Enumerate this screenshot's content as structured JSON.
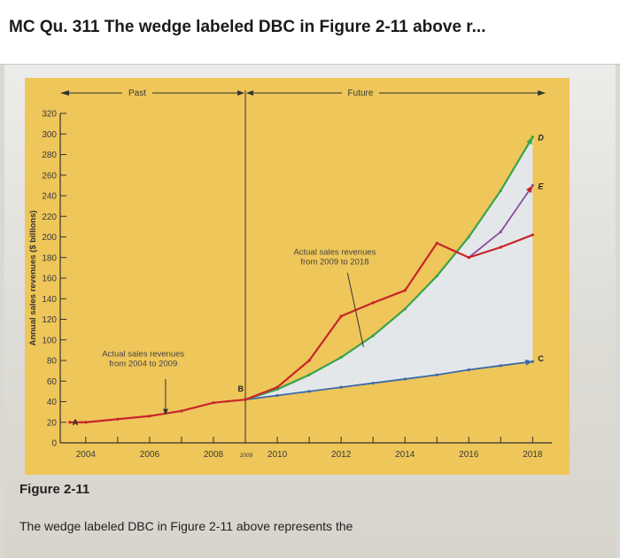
{
  "header": {
    "title": "MC Qu. 311 The wedge labeled DBC in Figure 2-11 above r..."
  },
  "figure": {
    "caption": "Figure 2-11",
    "question": "The wedge labeled DBC in Figure 2-11 above represents the"
  },
  "chart_data": {
    "type": "line",
    "ylabel": "Annual sales revenues ($ billions)",
    "xlabel": "",
    "ylim": [
      0,
      320
    ],
    "xlim": [
      2003.2,
      2018.6
    ],
    "yticks": [
      "0",
      "20",
      "40",
      "60",
      "80",
      "100",
      "120",
      "140",
      "160",
      "180",
      "200",
      "220",
      "240",
      "260",
      "280",
      "300",
      "320"
    ],
    "xticks": [
      {
        "value": 2004,
        "label": "2004"
      },
      {
        "value": 2006,
        "label": "2006"
      },
      {
        "value": 2008,
        "label": "2008"
      },
      {
        "value": 2009,
        "label": "2009"
      },
      {
        "value": 2010,
        "label": "2010"
      },
      {
        "value": 2012,
        "label": "2012"
      },
      {
        "value": 2014,
        "label": "2014"
      },
      {
        "value": 2016,
        "label": "2016"
      },
      {
        "value": 2018,
        "label": "2018"
      }
    ],
    "period_labels": {
      "past": "Past",
      "future": "Future"
    },
    "annotations": {
      "actual_2004_2009": "Actual sales revenues\nfrom 2004 to 2009",
      "actual_2009_2018": "Actual sales revenues\nfrom 2009 to 2018"
    },
    "point_labels": {
      "A": "A",
      "B": "B",
      "C": "C",
      "D": "D",
      "E": "E"
    },
    "colors": {
      "background": "#eec659",
      "wedge_fill": "#e4e7ea",
      "actual": "#c8242b",
      "lower_trend": "#3c6aa8",
      "upper_trend": "#3aa34a",
      "e_trend": "#8a4f9e",
      "axis": "#333333"
    },
    "series": [
      {
        "key": "actual_past",
        "values": [
          [
            2003.5,
            20
          ],
          [
            2004,
            20
          ],
          [
            2005,
            23
          ],
          [
            2006,
            26
          ],
          [
            2007,
            31
          ],
          [
            2008,
            39
          ],
          [
            2009,
            42
          ]
        ]
      },
      {
        "key": "actual_future",
        "values": [
          [
            2009,
            42
          ],
          [
            2010,
            54
          ],
          [
            2011,
            80
          ],
          [
            2012,
            123
          ],
          [
            2013,
            136
          ],
          [
            2014,
            148
          ],
          [
            2015,
            194
          ],
          [
            2016,
            180
          ],
          [
            2017,
            190
          ],
          [
            2018,
            202
          ]
        ]
      },
      {
        "key": "trend_C",
        "values": [
          [
            2009,
            42
          ],
          [
            2010,
            46
          ],
          [
            2011,
            50
          ],
          [
            2012,
            54
          ],
          [
            2013,
            58
          ],
          [
            2014,
            62
          ],
          [
            2015,
            66
          ],
          [
            2016,
            71
          ],
          [
            2017,
            75
          ],
          [
            2018,
            79
          ]
        ]
      },
      {
        "key": "trend_D",
        "values": [
          [
            2009,
            42
          ],
          [
            2010,
            52
          ],
          [
            2011,
            66
          ],
          [
            2012,
            83
          ],
          [
            2013,
            104
          ],
          [
            2014,
            130
          ],
          [
            2015,
            162
          ],
          [
            2016,
            200
          ],
          [
            2017,
            245
          ],
          [
            2018,
            297
          ]
        ]
      },
      {
        "key": "trend_E",
        "values": [
          [
            2016,
            180
          ],
          [
            2017,
            205
          ],
          [
            2018,
            250
          ]
        ]
      }
    ]
  }
}
